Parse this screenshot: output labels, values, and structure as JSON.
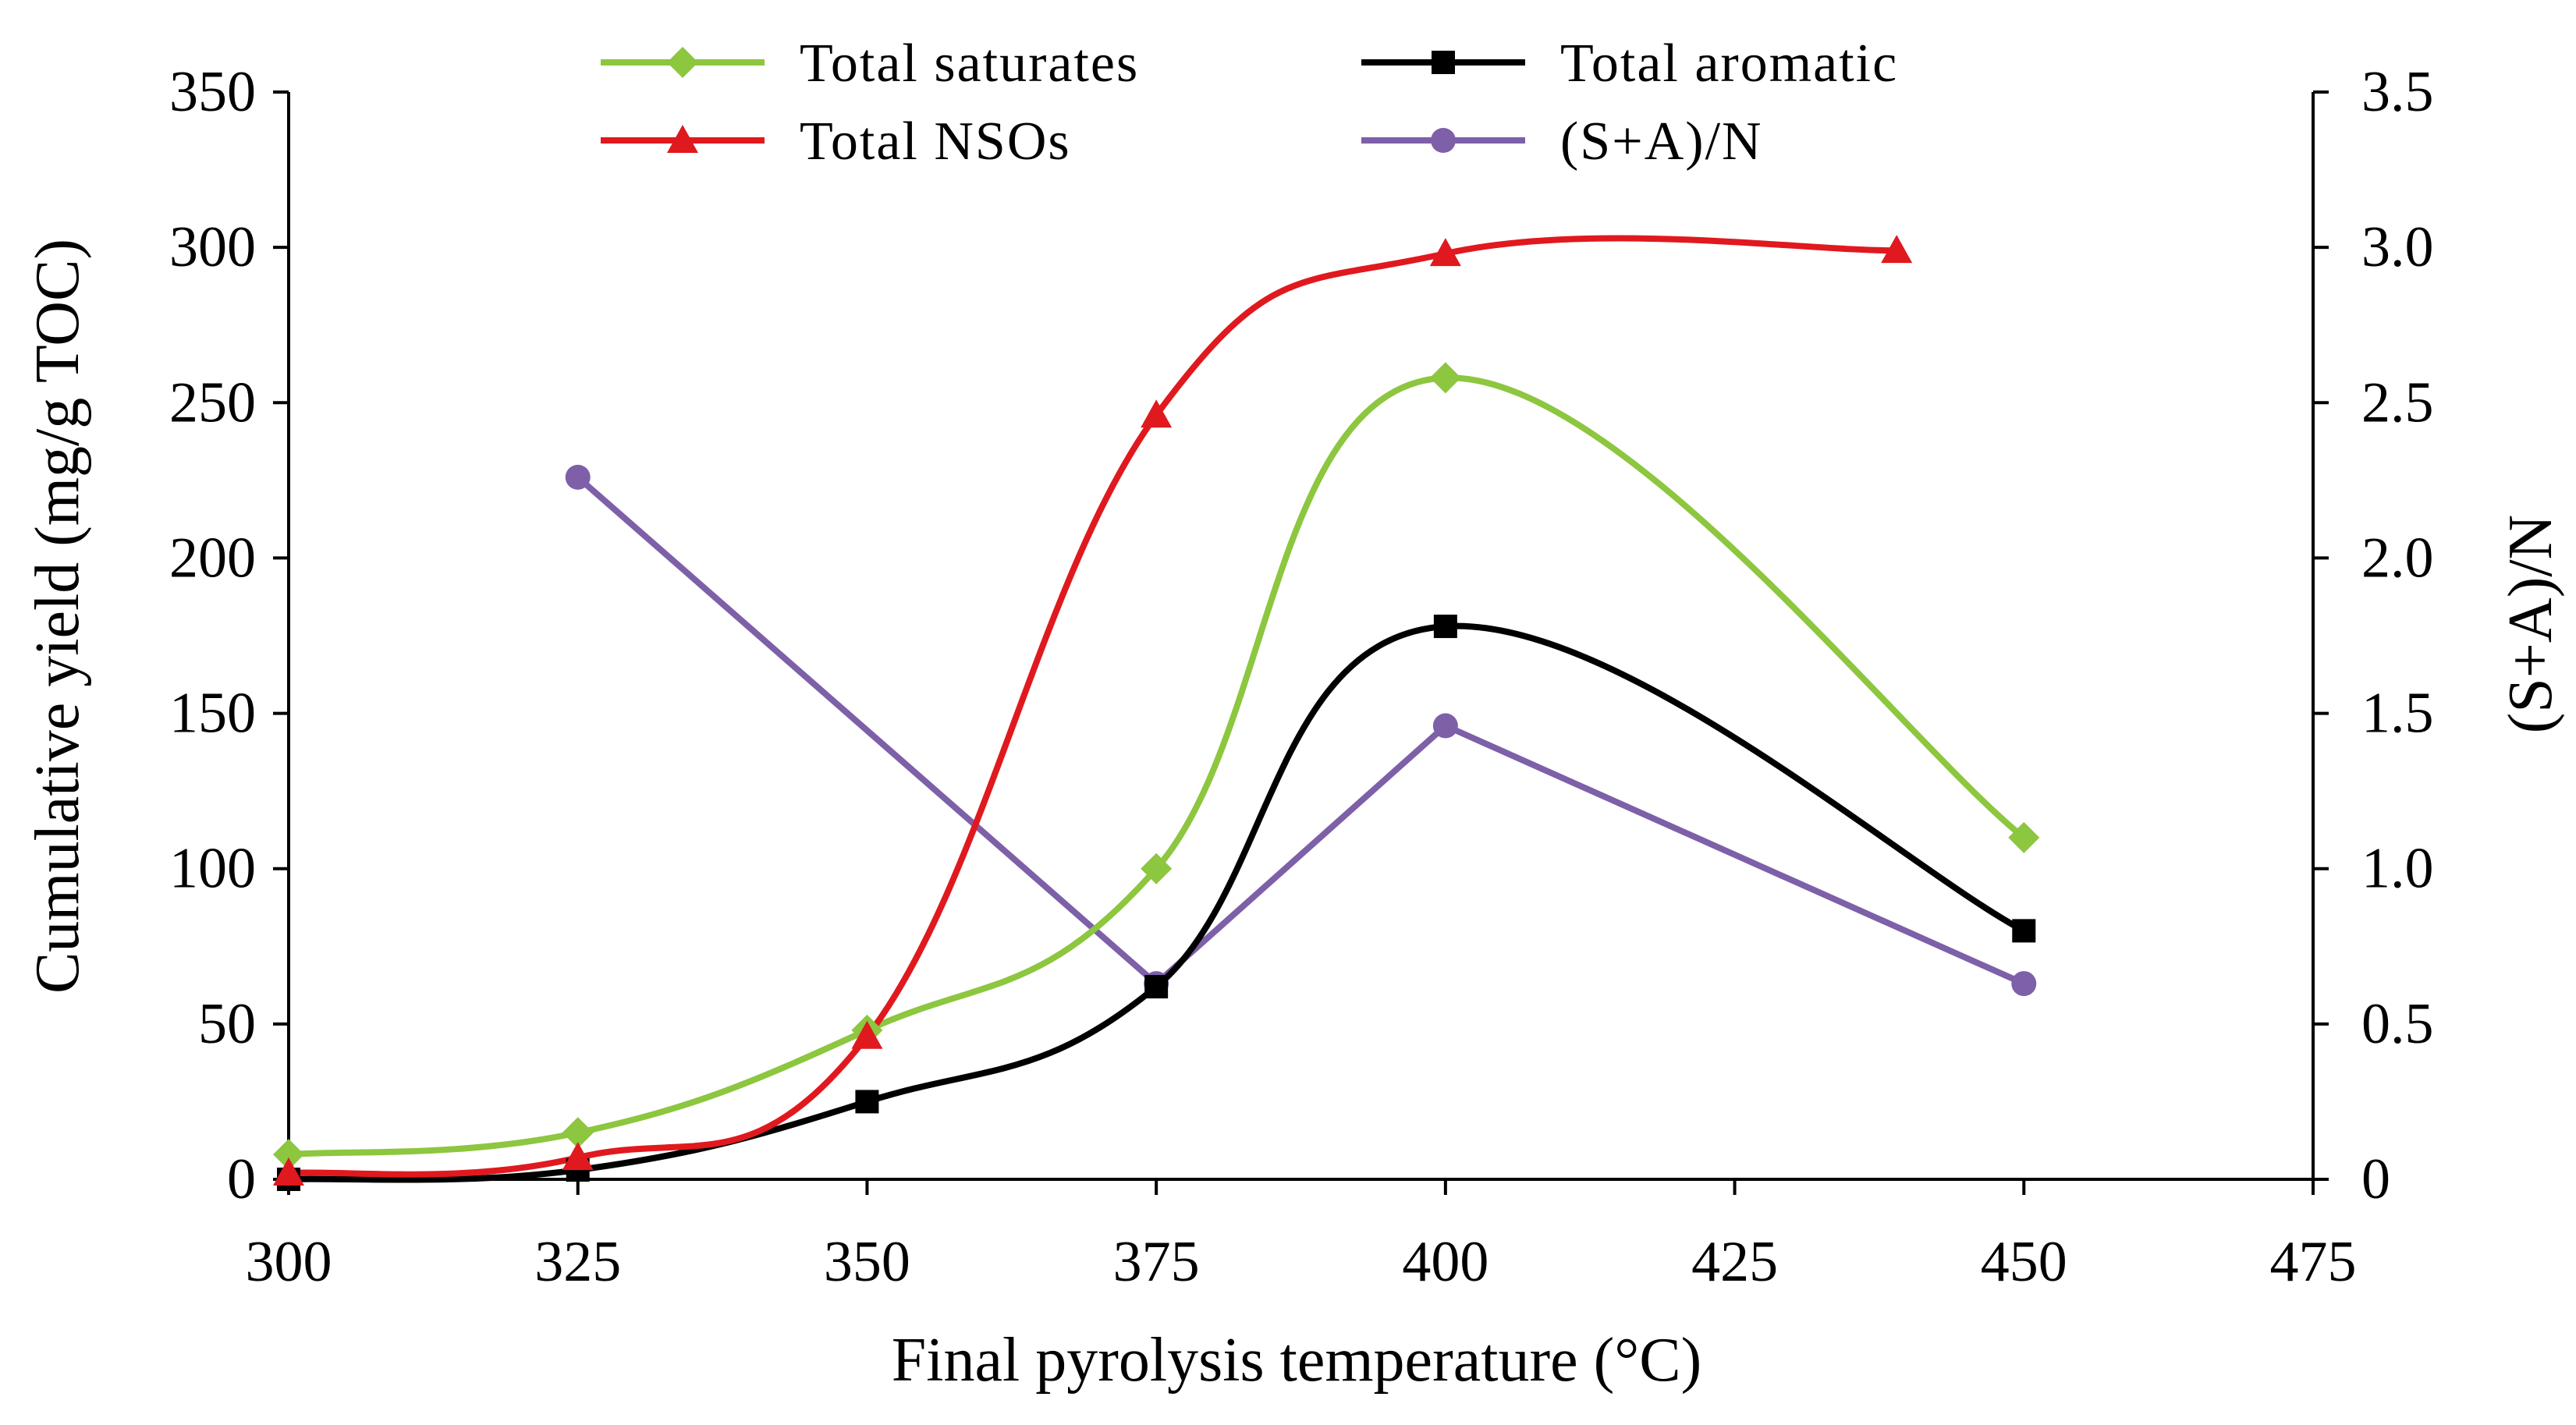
{
  "chart_data": {
    "type": "line",
    "xlabel": "Final pyrolysis temperature (°C)",
    "ylabel": "Cumulative yield (mg/g TOC)",
    "y2label": "(S+A)/N",
    "xlim": [
      300,
      475
    ],
    "ylim": [
      0,
      350
    ],
    "y2lim": [
      0,
      3.5
    ],
    "x_ticks": [
      "300",
      "325",
      "350",
      "375",
      "400",
      "425",
      "450",
      "475"
    ],
    "y_ticks": [
      "0",
      "50",
      "100",
      "150",
      "200",
      "250",
      "300",
      "350"
    ],
    "y2_ticks": [
      "0",
      "0.5",
      "1.0",
      "1.5",
      "2.0",
      "2.5",
      "3.0",
      "3.5"
    ],
    "grid": false,
    "legend_position": "top",
    "series": [
      {
        "name": "Total saturates",
        "axis": "left",
        "color": "#8dc63f",
        "marker": "diamond",
        "smooth": true,
        "x": [
          300,
          325,
          350,
          375,
          400,
          450
        ],
        "y": [
          8,
          15,
          48,
          100,
          258,
          110
        ]
      },
      {
        "name": "Total aromatic",
        "axis": "left",
        "color": "#000000",
        "marker": "square",
        "smooth": true,
        "x": [
          300,
          325,
          350,
          375,
          400,
          450
        ],
        "y": [
          0,
          3,
          25,
          62,
          178,
          80
        ]
      },
      {
        "name": "Total NSOs",
        "axis": "left",
        "color": "#e0191f",
        "marker": "triangle",
        "smooth": true,
        "x": [
          300,
          325,
          350,
          375,
          400,
          439
        ],
        "y": [
          2,
          7,
          46,
          246,
          298,
          299
        ]
      },
      {
        "name": "(S+A)/N",
        "axis": "right",
        "color": "#7d60a8",
        "marker": "circle",
        "smooth": false,
        "x": [
          325,
          375,
          400,
          450
        ],
        "y": [
          2.26,
          0.63,
          1.46,
          0.63
        ]
      }
    ]
  }
}
